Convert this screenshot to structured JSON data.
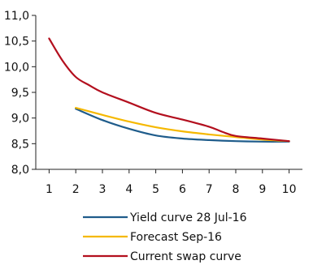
{
  "chart_data": {
    "type": "line",
    "x": [
      1,
      2,
      3,
      4,
      5,
      6,
      7,
      8,
      9,
      10
    ],
    "xlim": [
      0.5,
      10.5
    ],
    "ylim": [
      8.0,
      11.0
    ],
    "y_ticks": [
      "8,0",
      "8,5",
      "9,0",
      "9,5",
      "10,0",
      "10,5",
      "11,0"
    ],
    "x_ticks": [
      "1",
      "2",
      "3",
      "4",
      "5",
      "6",
      "7",
      "8",
      "9",
      "10"
    ],
    "legend_position": "bottom",
    "series": [
      {
        "name": "Yield curve 28 Jul-16",
        "color": "#1f5c8b",
        "points": [
          [
            2,
            9.18
          ],
          [
            3,
            8.96
          ],
          [
            4,
            8.79
          ],
          [
            5,
            8.66
          ],
          [
            6,
            8.6
          ],
          [
            7,
            8.57
          ],
          [
            8,
            8.55
          ],
          [
            9,
            8.54
          ],
          [
            10,
            8.54
          ]
        ]
      },
      {
        "name": "Forecast Sep-16",
        "color": "#f5b800",
        "points": [
          [
            2,
            9.2
          ],
          [
            3,
            9.06
          ],
          [
            4,
            8.93
          ],
          [
            5,
            8.82
          ],
          [
            6,
            8.74
          ],
          [
            7,
            8.68
          ],
          [
            8,
            8.63
          ],
          [
            9,
            8.58
          ],
          [
            10,
            8.55
          ]
        ]
      },
      {
        "name": "Current swap curve",
        "color": "#b30f1e",
        "points": [
          [
            1,
            10.55
          ],
          [
            1.5,
            10.12
          ],
          [
            2,
            9.8
          ],
          [
            2.5,
            9.64
          ],
          [
            3,
            9.5
          ],
          [
            4,
            9.3
          ],
          [
            5,
            9.1
          ],
          [
            6,
            8.97
          ],
          [
            7,
            8.83
          ],
          [
            7.5,
            8.73
          ],
          [
            8,
            8.65
          ],
          [
            9,
            8.6
          ],
          [
            10,
            8.55
          ]
        ]
      }
    ]
  }
}
